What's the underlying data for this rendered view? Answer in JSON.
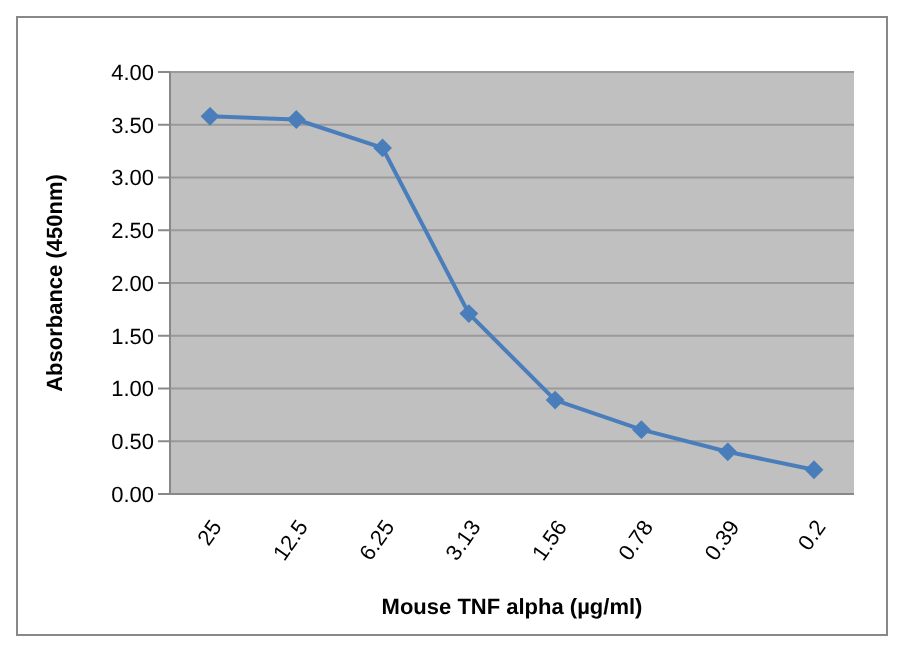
{
  "chart_data": {
    "type": "line",
    "xlabel": "Mouse TNF alpha (µg/ml)",
    "ylabel": "Absorbance (450nm)",
    "categories": [
      "25",
      "12.5",
      "6.25",
      "3.13",
      "1.56",
      "0.78",
      "0.39",
      "0.2"
    ],
    "series": [
      {
        "color": "#4a7ebb",
        "values": [
          3.58,
          3.55,
          3.28,
          1.71,
          0.89,
          0.61,
          0.4,
          0.23
        ]
      }
    ],
    "ylim": [
      0,
      4
    ],
    "yticks": [
      {
        "value": 0,
        "label": "0.00"
      },
      {
        "value": 0.5,
        "label": "0.50"
      },
      {
        "value": 1,
        "label": "1.00"
      },
      {
        "value": 1.5,
        "label": "1.50"
      },
      {
        "value": 2,
        "label": "2.00"
      },
      {
        "value": 2.5,
        "label": "2.50"
      },
      {
        "value": 3,
        "label": "3.00"
      },
      {
        "value": 3.5,
        "label": "3.50"
      },
      {
        "value": 4,
        "label": "4.00"
      }
    ],
    "grid": "y",
    "marker": "diamond",
    "legend": false
  }
}
